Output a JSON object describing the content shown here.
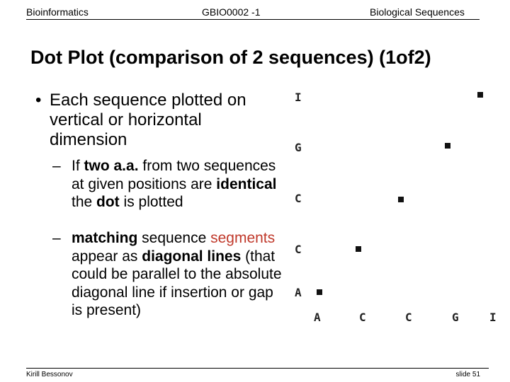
{
  "header": {
    "left": "Bioinformatics",
    "center": "GBIO0002 -1",
    "right": "Biological Sequences"
  },
  "title": "Dot Plot (comparison of 2 sequences) (1of2)",
  "bullet": "Each sequence plotted on vertical or horizontal dimension",
  "sub_bullets": [
    [
      {
        "text": "If "
      },
      {
        "text": "two a.a.",
        "style": "bold"
      },
      {
        "text": " from two sequences at given positions are "
      },
      {
        "text": "identical",
        "style": "bold"
      },
      {
        "text": " the "
      },
      {
        "text": "dot",
        "style": "bold"
      },
      {
        "text": " is plotted"
      }
    ],
    [
      {
        "text": "matching",
        "style": "bold"
      },
      {
        "text": " sequence "
      },
      {
        "text": "segments",
        "style": "red"
      },
      {
        "text": " appear as "
      },
      {
        "text": "diagonal lines",
        "style": "bold"
      },
      {
        "text": " (that could be parallel to the absolute diagonal line if insertion or gap is present)"
      }
    ]
  ],
  "dot_plot": {
    "vertical": [
      "I",
      "G",
      "C",
      "C",
      "A"
    ],
    "horizontal": [
      "A",
      "C",
      "C",
      "G",
      "I"
    ]
  },
  "footer": {
    "author": "Kirill Bessonov",
    "slide": "slide 51"
  }
}
